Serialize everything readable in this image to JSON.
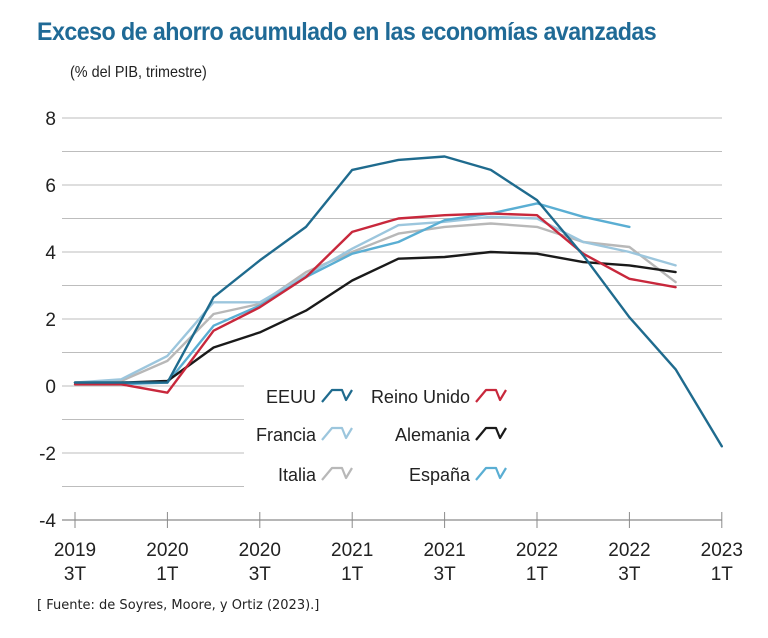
{
  "chart_data": {
    "type": "line",
    "title": "Exceso de ahorro acumulado en las economías avanzadas",
    "subtitle": "(% del PIB, trimestre)",
    "source": "[ Fuente: de Soyres, Moore, y Ortiz (2023).]",
    "xlabel": "",
    "ylabel": "",
    "ylim": [
      -4,
      8
    ],
    "yticks": [
      8,
      6,
      4,
      2,
      0,
      -2,
      -4
    ],
    "ygrid_step": 1,
    "grid": true,
    "legend_position": "center",
    "x": [
      "2019Q3",
      "2019Q4",
      "2020Q1",
      "2020Q2",
      "2020Q3",
      "2020Q4",
      "2021Q1",
      "2021Q2",
      "2021Q3",
      "2021Q4",
      "2022Q1",
      "2022Q2",
      "2022Q3",
      "2022Q4",
      "2023Q1"
    ],
    "xticks": [
      {
        "index": 0,
        "year": "2019",
        "quarter": "3T"
      },
      {
        "index": 2,
        "year": "2020",
        "quarter": "1T"
      },
      {
        "index": 4,
        "year": "2020",
        "quarter": "3T"
      },
      {
        "index": 6,
        "year": "2021",
        "quarter": "1T"
      },
      {
        "index": 8,
        "year": "2021",
        "quarter": "3T"
      },
      {
        "index": 10,
        "year": "2022",
        "quarter": "1T"
      },
      {
        "index": 12,
        "year": "2022",
        "quarter": "3T"
      },
      {
        "index": 14,
        "year": "2023",
        "quarter": "1T"
      }
    ],
    "series": [
      {
        "name": "EEUU",
        "color": "#1f6b8e",
        "values": [
          0.1,
          0.1,
          0.1,
          2.65,
          3.75,
          4.75,
          6.45,
          6.75,
          6.85,
          6.45,
          5.55,
          3.9,
          2.05,
          0.5,
          -1.8
        ]
      },
      {
        "name": "Reino Unido",
        "color": "#c8283c",
        "values": [
          0.05,
          0.05,
          -0.2,
          1.65,
          2.35,
          3.25,
          4.6,
          5.0,
          5.1,
          5.15,
          5.1,
          3.95,
          3.2,
          2.95,
          null
        ]
      },
      {
        "name": "Francia",
        "color": "#9cc6dd",
        "values": [
          0.1,
          0.2,
          0.9,
          2.5,
          2.5,
          3.3,
          4.1,
          4.8,
          4.9,
          5.05,
          5.0,
          4.3,
          4.0,
          3.6,
          null
        ]
      },
      {
        "name": "Alemania",
        "color": "#1a1a1a",
        "values": [
          0.1,
          0.1,
          0.15,
          1.15,
          1.6,
          2.25,
          3.15,
          3.8,
          3.85,
          4.0,
          3.95,
          3.7,
          3.6,
          3.4,
          null
        ]
      },
      {
        "name": "Italia",
        "color": "#b8b8b8",
        "values": [
          0.1,
          0.15,
          0.75,
          2.15,
          2.45,
          3.4,
          4.0,
          4.55,
          4.75,
          4.85,
          4.75,
          4.3,
          4.15,
          3.1,
          null
        ]
      },
      {
        "name": "España",
        "color": "#5aaed3",
        "values": [
          0.05,
          0.05,
          0.1,
          1.8,
          2.4,
          3.25,
          3.95,
          4.3,
          4.95,
          5.15,
          5.45,
          5.05,
          4.75,
          null,
          null
        ]
      }
    ]
  }
}
